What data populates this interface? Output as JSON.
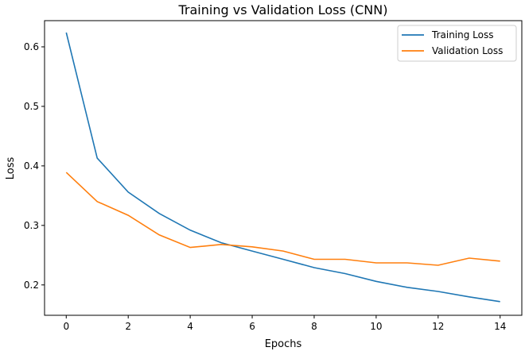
{
  "chart_data": {
    "type": "line",
    "title": "Training vs Validation Loss (CNN)",
    "xlabel": "Epochs",
    "ylabel": "Loss",
    "xlim": [
      -0.7,
      14.7
    ],
    "ylim": [
      0.149,
      0.644
    ],
    "xticks": [
      0,
      2,
      4,
      6,
      8,
      10,
      12,
      14
    ],
    "yticks": [
      0.2,
      0.3,
      0.4,
      0.5,
      0.6
    ],
    "ytick_labels": [
      "0.2",
      "0.3",
      "0.4",
      "0.5",
      "0.6"
    ],
    "grid": false,
    "legend_position": "top-right",
    "x": [
      0,
      1,
      2,
      3,
      4,
      5,
      6,
      7,
      8,
      9,
      10,
      11,
      12,
      13,
      14
    ],
    "series": [
      {
        "name": "Training Loss",
        "color": "#1f77b4",
        "values": [
          0.624,
          0.413,
          0.356,
          0.32,
          0.292,
          0.271,
          0.257,
          0.243,
          0.229,
          0.219,
          0.206,
          0.196,
          0.189,
          0.18,
          0.172
        ]
      },
      {
        "name": "Validation Loss",
        "color": "#ff7f0e",
        "values": [
          0.389,
          0.34,
          0.317,
          0.284,
          0.263,
          0.268,
          0.264,
          0.257,
          0.243,
          0.243,
          0.237,
          0.237,
          0.233,
          0.245,
          0.24
        ]
      }
    ]
  }
}
